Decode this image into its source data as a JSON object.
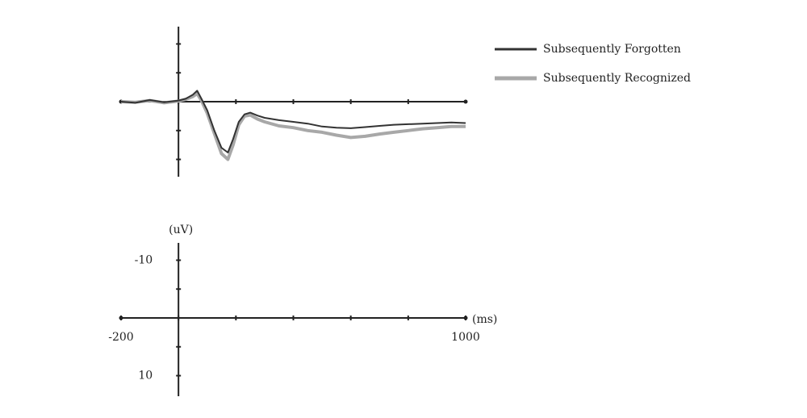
{
  "chart_data": [
    {
      "type": "line",
      "x": [
        -200,
        -150,
        -100,
        -50,
        0,
        25,
        50,
        65,
        80,
        100,
        125,
        150,
        172,
        190,
        210,
        230,
        250,
        275,
        300,
        350,
        400,
        450,
        500,
        550,
        600,
        650,
        700,
        750,
        800,
        850,
        900,
        950,
        1000
      ],
      "series": [
        {
          "name": "Subsequently Forgotten",
          "color": "#333333",
          "width": 2,
          "values": [
            0,
            0.2,
            -0.3,
            0.1,
            -0.2,
            -0.5,
            -1.2,
            -1.9,
            -0.5,
            1.5,
            5,
            8,
            8.8,
            6.5,
            3.5,
            2.2,
            1.9,
            2.4,
            2.8,
            3.2,
            3.5,
            3.8,
            4.3,
            4.5,
            4.6,
            4.4,
            4.2,
            4.0,
            3.9,
            3.8,
            3.7,
            3.6,
            3.7
          ]
        },
        {
          "name": "Subsequently Recognized",
          "color": "#a8a8a8",
          "width": 4,
          "values": [
            0,
            0.1,
            -0.2,
            0.2,
            -0.1,
            -0.4,
            -0.9,
            -1.4,
            -0.2,
            2,
            5.5,
            9,
            10,
            7.5,
            4,
            2.5,
            2.3,
            3,
            3.5,
            4.2,
            4.5,
            5,
            5.3,
            5.8,
            6.2,
            6,
            5.6,
            5.3,
            5,
            4.7,
            4.5,
            4.3,
            4.3
          ]
        }
      ],
      "xlim": [
        -200,
        1000
      ],
      "ylim": [
        -13,
        13
      ],
      "y_inverted": true,
      "xminorticks": [
        0,
        200,
        400,
        600,
        800
      ],
      "yminorticks": [
        -10,
        -5,
        5,
        10
      ]
    },
    {
      "type": "axes",
      "xlabel": "(ms)",
      "ylabel": "(uV)",
      "xlim": [
        -200,
        1000
      ],
      "ylim": [
        -13,
        13
      ],
      "y_inverted": true,
      "xticks": [
        -200,
        1000
      ],
      "yticks": [
        -10,
        10
      ],
      "xminorticks": [
        0,
        200,
        400,
        600,
        800
      ],
      "yminorticks": [
        -5,
        5
      ]
    }
  ]
}
